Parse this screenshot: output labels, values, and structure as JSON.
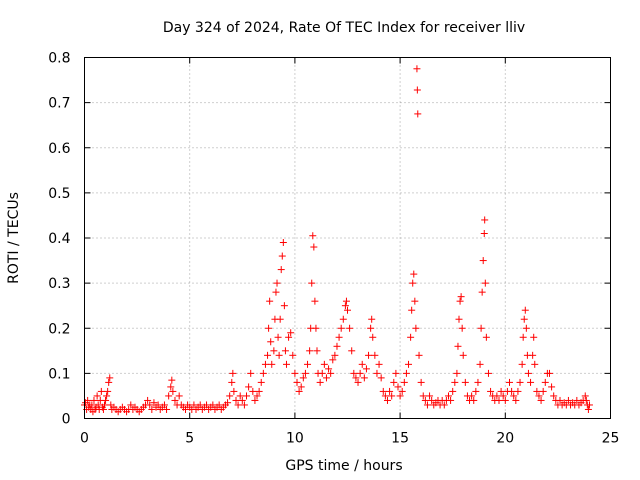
{
  "chart_data": {
    "type": "scatter",
    "title": "Day 324 of 2024, Rate Of TEC Index for receiver lliv",
    "xlabel": "GPS time / hours",
    "ylabel": "ROTI / TECUs",
    "xlim": [
      0,
      25
    ],
    "ylim": [
      0,
      0.8
    ],
    "xticks": [
      0,
      5,
      10,
      15,
      20,
      25
    ],
    "yticks": [
      0,
      0.1,
      0.2,
      0.3,
      0.4,
      0.5,
      0.6,
      0.7,
      0.8
    ],
    "ytick_labels": [
      "0",
      "0.1",
      "0.2",
      "0.3",
      "0.4",
      "0.5",
      "0.6",
      "0.7",
      "0.8"
    ],
    "grid": true,
    "marker": "+",
    "color": "#ff0000",
    "series": [
      {
        "name": "ROTI",
        "points": [
          [
            0.0,
            0.03
          ],
          [
            0.05,
            0.035
          ],
          [
            0.1,
            0.02
          ],
          [
            0.15,
            0.04
          ],
          [
            0.2,
            0.025
          ],
          [
            0.25,
            0.03
          ],
          [
            0.3,
            0.02
          ],
          [
            0.35,
            0.03
          ],
          [
            0.4,
            0.015
          ],
          [
            0.45,
            0.04
          ],
          [
            0.5,
            0.02
          ],
          [
            0.55,
            0.025
          ],
          [
            0.6,
            0.05
          ],
          [
            0.65,
            0.03
          ],
          [
            0.7,
            0.02
          ],
          [
            0.75,
            0.04
          ],
          [
            0.8,
            0.06
          ],
          [
            0.85,
            0.025
          ],
          [
            0.9,
            0.02
          ],
          [
            0.95,
            0.03
          ],
          [
            1.0,
            0.04
          ],
          [
            1.05,
            0.05
          ],
          [
            1.1,
            0.06
          ],
          [
            1.15,
            0.08
          ],
          [
            1.2,
            0.09
          ],
          [
            1.25,
            0.03
          ],
          [
            1.3,
            0.02
          ],
          [
            1.4,
            0.025
          ],
          [
            1.5,
            0.02
          ],
          [
            1.6,
            0.015
          ],
          [
            1.7,
            0.02
          ],
          [
            1.8,
            0.025
          ],
          [
            1.9,
            0.02
          ],
          [
            2.0,
            0.015
          ],
          [
            2.1,
            0.02
          ],
          [
            2.2,
            0.03
          ],
          [
            2.3,
            0.02
          ],
          [
            2.4,
            0.025
          ],
          [
            2.5,
            0.02
          ],
          [
            2.6,
            0.015
          ],
          [
            2.7,
            0.02
          ],
          [
            2.8,
            0.025
          ],
          [
            2.9,
            0.03
          ],
          [
            3.0,
            0.04
          ],
          [
            3.1,
            0.03
          ],
          [
            3.2,
            0.02
          ],
          [
            3.3,
            0.035
          ],
          [
            3.4,
            0.025
          ],
          [
            3.5,
            0.03
          ],
          [
            3.6,
            0.02
          ],
          [
            3.7,
            0.025
          ],
          [
            3.8,
            0.03
          ],
          [
            3.9,
            0.02
          ],
          [
            4.0,
            0.05
          ],
          [
            4.1,
            0.07
          ],
          [
            4.15,
            0.085
          ],
          [
            4.2,
            0.06
          ],
          [
            4.3,
            0.04
          ],
          [
            4.4,
            0.03
          ],
          [
            4.5,
            0.05
          ],
          [
            4.6,
            0.03
          ],
          [
            4.7,
            0.025
          ],
          [
            4.8,
            0.02
          ],
          [
            4.9,
            0.03
          ],
          [
            5.0,
            0.025
          ],
          [
            5.1,
            0.02
          ],
          [
            5.2,
            0.03
          ],
          [
            5.3,
            0.02
          ],
          [
            5.4,
            0.025
          ],
          [
            5.5,
            0.03
          ],
          [
            5.6,
            0.02
          ],
          [
            5.7,
            0.025
          ],
          [
            5.8,
            0.03
          ],
          [
            5.9,
            0.02
          ],
          [
            6.0,
            0.025
          ],
          [
            6.1,
            0.03
          ],
          [
            6.2,
            0.02
          ],
          [
            6.3,
            0.025
          ],
          [
            6.4,
            0.03
          ],
          [
            6.5,
            0.02
          ],
          [
            6.6,
            0.025
          ],
          [
            6.7,
            0.03
          ],
          [
            6.8,
            0.035
          ],
          [
            6.9,
            0.05
          ],
          [
            7.0,
            0.08
          ],
          [
            7.05,
            0.1
          ],
          [
            7.1,
            0.06
          ],
          [
            7.2,
            0.04
          ],
          [
            7.3,
            0.03
          ],
          [
            7.4,
            0.05
          ],
          [
            7.5,
            0.04
          ],
          [
            7.6,
            0.03
          ],
          [
            7.7,
            0.05
          ],
          [
            7.8,
            0.07
          ],
          [
            7.9,
            0.1
          ],
          [
            8.0,
            0.06
          ],
          [
            8.1,
            0.04
          ],
          [
            8.2,
            0.05
          ],
          [
            8.3,
            0.06
          ],
          [
            8.4,
            0.08
          ],
          [
            8.5,
            0.1
          ],
          [
            8.6,
            0.12
          ],
          [
            8.7,
            0.14
          ],
          [
            8.75,
            0.2
          ],
          [
            8.8,
            0.26
          ],
          [
            8.85,
            0.17
          ],
          [
            8.9,
            0.12
          ],
          [
            9.0,
            0.15
          ],
          [
            9.05,
            0.22
          ],
          [
            9.1,
            0.28
          ],
          [
            9.15,
            0.3
          ],
          [
            9.2,
            0.18
          ],
          [
            9.25,
            0.14
          ],
          [
            9.3,
            0.22
          ],
          [
            9.35,
            0.33
          ],
          [
            9.4,
            0.36
          ],
          [
            9.45,
            0.39
          ],
          [
            9.5,
            0.25
          ],
          [
            9.55,
            0.15
          ],
          [
            9.6,
            0.12
          ],
          [
            9.7,
            0.18
          ],
          [
            9.8,
            0.19
          ],
          [
            9.9,
            0.14
          ],
          [
            10.0,
            0.1
          ],
          [
            10.1,
            0.08
          ],
          [
            10.2,
            0.06
          ],
          [
            10.3,
            0.07
          ],
          [
            10.4,
            0.09
          ],
          [
            10.5,
            0.1
          ],
          [
            10.6,
            0.12
          ],
          [
            10.7,
            0.15
          ],
          [
            10.75,
            0.2
          ],
          [
            10.8,
            0.3
          ],
          [
            10.85,
            0.405
          ],
          [
            10.9,
            0.38
          ],
          [
            10.95,
            0.26
          ],
          [
            11.0,
            0.2
          ],
          [
            11.05,
            0.15
          ],
          [
            11.1,
            0.1
          ],
          [
            11.2,
            0.08
          ],
          [
            11.3,
            0.1
          ],
          [
            11.4,
            0.12
          ],
          [
            11.5,
            0.09
          ],
          [
            11.6,
            0.11
          ],
          [
            11.7,
            0.1
          ],
          [
            11.8,
            0.13
          ],
          [
            11.9,
            0.14
          ],
          [
            12.0,
            0.16
          ],
          [
            12.1,
            0.18
          ],
          [
            12.2,
            0.2
          ],
          [
            12.3,
            0.22
          ],
          [
            12.4,
            0.25
          ],
          [
            12.45,
            0.26
          ],
          [
            12.5,
            0.24
          ],
          [
            12.6,
            0.2
          ],
          [
            12.7,
            0.15
          ],
          [
            12.8,
            0.1
          ],
          [
            12.9,
            0.09
          ],
          [
            13.0,
            0.08
          ],
          [
            13.1,
            0.1
          ],
          [
            13.2,
            0.12
          ],
          [
            13.3,
            0.09
          ],
          [
            13.4,
            0.11
          ],
          [
            13.5,
            0.14
          ],
          [
            13.6,
            0.2
          ],
          [
            13.65,
            0.22
          ],
          [
            13.7,
            0.18
          ],
          [
            13.8,
            0.14
          ],
          [
            13.9,
            0.1
          ],
          [
            14.0,
            0.12
          ],
          [
            14.1,
            0.09
          ],
          [
            14.2,
            0.06
          ],
          [
            14.3,
            0.05
          ],
          [
            14.4,
            0.04
          ],
          [
            14.5,
            0.06
          ],
          [
            14.6,
            0.05
          ],
          [
            14.7,
            0.08
          ],
          [
            14.8,
            0.1
          ],
          [
            14.9,
            0.07
          ],
          [
            15.0,
            0.05
          ],
          [
            15.1,
            0.06
          ],
          [
            15.2,
            0.08
          ],
          [
            15.3,
            0.1
          ],
          [
            15.4,
            0.12
          ],
          [
            15.5,
            0.18
          ],
          [
            15.55,
            0.24
          ],
          [
            15.6,
            0.3
          ],
          [
            15.65,
            0.32
          ],
          [
            15.7,
            0.26
          ],
          [
            15.75,
            0.2
          ],
          [
            15.8,
            0.775
          ],
          [
            15.82,
            0.728
          ],
          [
            15.84,
            0.675
          ],
          [
            15.9,
            0.14
          ],
          [
            16.0,
            0.08
          ],
          [
            16.1,
            0.05
          ],
          [
            16.2,
            0.04
          ],
          [
            16.3,
            0.03
          ],
          [
            16.4,
            0.05
          ],
          [
            16.5,
            0.04
          ],
          [
            16.6,
            0.03
          ],
          [
            16.7,
            0.035
          ],
          [
            16.8,
            0.04
          ],
          [
            16.9,
            0.03
          ],
          [
            17.0,
            0.04
          ],
          [
            17.1,
            0.03
          ],
          [
            17.2,
            0.04
          ],
          [
            17.3,
            0.05
          ],
          [
            17.4,
            0.04
          ],
          [
            17.5,
            0.06
          ],
          [
            17.6,
            0.08
          ],
          [
            17.7,
            0.1
          ],
          [
            17.75,
            0.16
          ],
          [
            17.8,
            0.22
          ],
          [
            17.85,
            0.26
          ],
          [
            17.9,
            0.27
          ],
          [
            17.95,
            0.2
          ],
          [
            18.0,
            0.14
          ],
          [
            18.1,
            0.08
          ],
          [
            18.2,
            0.05
          ],
          [
            18.3,
            0.04
          ],
          [
            18.4,
            0.05
          ],
          [
            18.5,
            0.04
          ],
          [
            18.6,
            0.06
          ],
          [
            18.7,
            0.08
          ],
          [
            18.8,
            0.12
          ],
          [
            18.85,
            0.2
          ],
          [
            18.9,
            0.28
          ],
          [
            18.95,
            0.35
          ],
          [
            19.0,
            0.41
          ],
          [
            19.02,
            0.44
          ],
          [
            19.05,
            0.3
          ],
          [
            19.1,
            0.18
          ],
          [
            19.2,
            0.1
          ],
          [
            19.3,
            0.06
          ],
          [
            19.4,
            0.05
          ],
          [
            19.5,
            0.04
          ],
          [
            19.6,
            0.05
          ],
          [
            19.7,
            0.04
          ],
          [
            19.8,
            0.06
          ],
          [
            19.9,
            0.05
          ],
          [
            20.0,
            0.04
          ],
          [
            20.1,
            0.06
          ],
          [
            20.2,
            0.08
          ],
          [
            20.3,
            0.06
          ],
          [
            20.4,
            0.05
          ],
          [
            20.5,
            0.04
          ],
          [
            20.6,
            0.06
          ],
          [
            20.7,
            0.08
          ],
          [
            20.8,
            0.12
          ],
          [
            20.85,
            0.18
          ],
          [
            20.9,
            0.22
          ],
          [
            20.95,
            0.24
          ],
          [
            21.0,
            0.2
          ],
          [
            21.05,
            0.14
          ],
          [
            21.1,
            0.1
          ],
          [
            21.2,
            0.08
          ],
          [
            21.3,
            0.14
          ],
          [
            21.35,
            0.18
          ],
          [
            21.4,
            0.12
          ],
          [
            21.5,
            0.06
          ],
          [
            21.6,
            0.05
          ],
          [
            21.7,
            0.04
          ],
          [
            21.8,
            0.06
          ],
          [
            21.9,
            0.08
          ],
          [
            22.0,
            0.1
          ],
          [
            22.1,
            0.1
          ],
          [
            22.2,
            0.07
          ],
          [
            22.3,
            0.05
          ],
          [
            22.4,
            0.04
          ],
          [
            22.5,
            0.03
          ],
          [
            22.6,
            0.04
          ],
          [
            22.7,
            0.03
          ],
          [
            22.8,
            0.035
          ],
          [
            22.9,
            0.03
          ],
          [
            23.0,
            0.04
          ],
          [
            23.1,
            0.03
          ],
          [
            23.2,
            0.035
          ],
          [
            23.3,
            0.03
          ],
          [
            23.4,
            0.04
          ],
          [
            23.5,
            0.03
          ],
          [
            23.6,
            0.035
          ],
          [
            23.7,
            0.04
          ],
          [
            23.8,
            0.05
          ],
          [
            23.85,
            0.04
          ],
          [
            23.9,
            0.03
          ],
          [
            23.95,
            0.02
          ],
          [
            24.0,
            0.03
          ]
        ]
      }
    ]
  }
}
